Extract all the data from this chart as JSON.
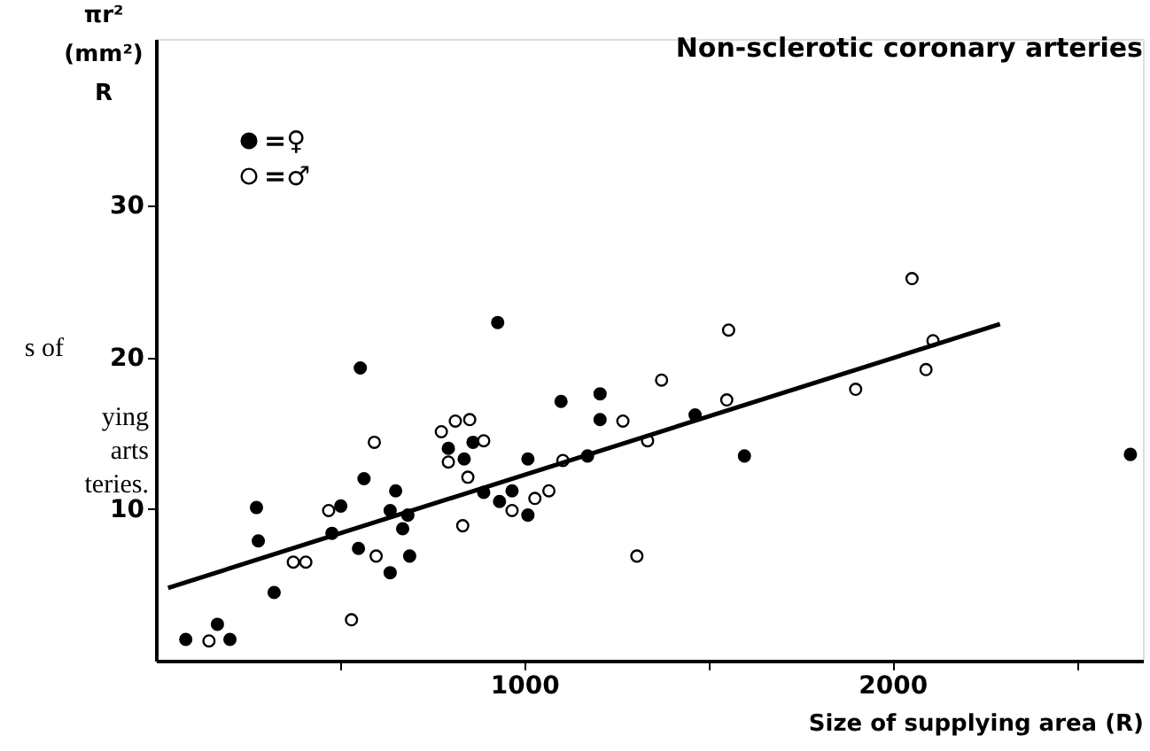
{
  "chart_data": {
    "type": "scatter",
    "title": "Non-sclerotic coronary arteries",
    "xlabel": "Size of supplying area (R)",
    "ylabel": "πr²\n(mm²)\nR",
    "xlim": [
      0,
      2680
    ],
    "ylim": [
      0,
      41
    ],
    "xticks": [
      {
        "value": 500,
        "label": null
      },
      1000,
      {
        "value": 1500,
        "label": null
      },
      2000,
      {
        "value": 2500,
        "label": null
      }
    ],
    "yticks": [
      10,
      20,
      30
    ],
    "grid": false,
    "legend": "top left",
    "marker": "circle",
    "annotations": [
      "s of",
      "ying",
      "arts",
      "teries."
    ],
    "series": [
      {
        "name": "=♀",
        "color": "#000000",
        "x": [
          81,
          167,
          201,
          273,
          278,
          321,
          502,
          478,
          555,
          565,
          550,
          651,
          636,
          670,
          684,
          689,
          636,
          794,
          837,
          861,
          890,
          933,
          967,
          1010,
          1010,
          1100,
          1206,
          1206,
          928,
          1172,
          1464,
          1598,
          2646
        ],
        "values": [
          1.4,
          2.4,
          1.4,
          10.1,
          7.9,
          4.5,
          10.2,
          8.4,
          19.3,
          12,
          7.4,
          11.2,
          9.9,
          8.7,
          9.6,
          6.9,
          5.8,
          14,
          13.3,
          14.4,
          11.1,
          10.5,
          11.2,
          9.6,
          13.3,
          17.1,
          17.6,
          15.9,
          22.3,
          13.5,
          16.2,
          13.5,
          13.6
        ]
      },
      {
        "name": "=♂",
        "color": "#ffffff",
        "x": [
          144,
          373,
          407,
          469,
          531,
          593,
          598,
          775,
          794,
          813,
          852,
          833,
          847,
          890,
          967,
          1029,
          1067,
          1105,
          1268,
          1335,
          1306,
          1373,
          1555,
          1550,
          1900,
          2053,
          2091,
          2110
        ],
        "values": [
          1.3,
          6.5,
          6.5,
          9.9,
          2.7,
          14.4,
          6.9,
          15.1,
          13.1,
          15.8,
          15.9,
          8.9,
          12.1,
          14.5,
          9.9,
          10.7,
          11.2,
          13.2,
          15.8,
          14.5,
          6.9,
          18.5,
          21.8,
          17.2,
          17.9,
          25.2,
          19.2,
          21.1
        ]
      },
      {
        "type": "line",
        "marker": "none",
        "line_style": "solid",
        "color": "#000000",
        "x": [
          33,
          2292
        ],
        "values": [
          4.8,
          22.2
        ]
      }
    ]
  }
}
